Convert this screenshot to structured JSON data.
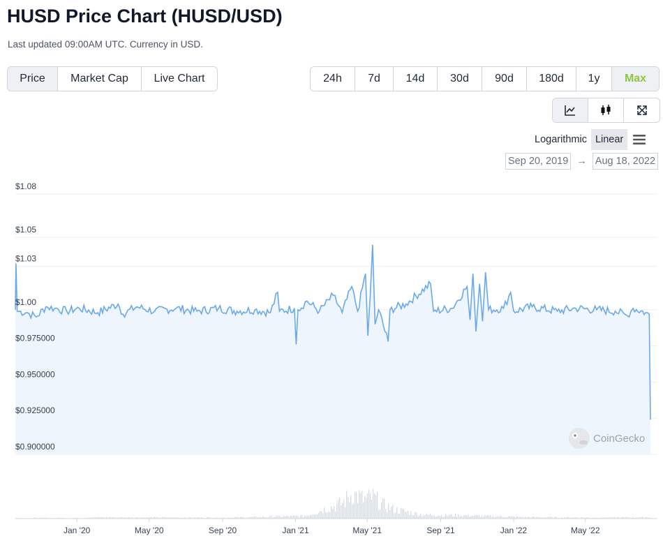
{
  "header": {
    "title": "HUSD Price Chart (HUSD/USD)",
    "subtitle": "Last updated 09:00AM UTC. Currency in USD."
  },
  "tabs": [
    {
      "label": "Price",
      "active": true
    },
    {
      "label": "Market Cap",
      "active": false
    },
    {
      "label": "Live Chart",
      "active": false
    }
  ],
  "ranges": [
    {
      "label": "24h",
      "active": false
    },
    {
      "label": "7d",
      "active": false
    },
    {
      "label": "14d",
      "active": false
    },
    {
      "label": "30d",
      "active": false
    },
    {
      "label": "90d",
      "active": false
    },
    {
      "label": "180d",
      "active": false
    },
    {
      "label": "1y",
      "active": false
    },
    {
      "label": "Max",
      "active": true
    }
  ],
  "tools": [
    {
      "icon": "line-chart-icon",
      "active": true
    },
    {
      "icon": "candlestick-icon",
      "active": false
    },
    {
      "icon": "fullscreen-icon",
      "active": false
    }
  ],
  "scale": {
    "logarithmic_label": "Logarithmic",
    "linear_label": "Linear",
    "active": "linear"
  },
  "date_range": {
    "from": "Sep 20, 2019",
    "arrow": "→",
    "to": "Aug 18, 2022"
  },
  "colors": {
    "line": "#6aa9e9",
    "area": "#eef5fd",
    "volume": "#d5dbe3",
    "accent": "#8dc63f"
  },
  "watermark": "CoinGecko",
  "chart_data": {
    "type": "line",
    "title": "HUSD Price Chart (HUSD/USD)",
    "x_range": [
      "2019-09-20",
      "2022-08-18"
    ],
    "ylim": [
      0.9,
      1.08
    ],
    "y_ticks": [
      {
        "value": 1.08,
        "label": "$1.08"
      },
      {
        "value": 1.05,
        "label": "$1.05"
      },
      {
        "value": 1.03,
        "label": "$1.03"
      },
      {
        "value": 1.0,
        "label": "$1.00"
      },
      {
        "value": 0.975,
        "label": "$0.975000"
      },
      {
        "value": 0.95,
        "label": "$0.950000"
      },
      {
        "value": 0.925,
        "label": "$0.925000"
      },
      {
        "value": 0.9,
        "label": "$0.900000"
      }
    ],
    "x_ticks": [
      {
        "date": "2020-01-01",
        "label": "Jan '20"
      },
      {
        "date": "2020-05-01",
        "label": "May '20"
      },
      {
        "date": "2020-09-01",
        "label": "Sep '20"
      },
      {
        "date": "2021-01-01",
        "label": "Jan '21"
      },
      {
        "date": "2021-05-01",
        "label": "May '21"
      },
      {
        "date": "2021-09-01",
        "label": "Sep '21"
      },
      {
        "date": "2022-01-01",
        "label": "Jan '22"
      },
      {
        "date": "2022-05-01",
        "label": "May '22"
      }
    ],
    "series": [
      {
        "values": [
          {
            "date": "2019-09-20",
            "price": 1.0
          },
          {
            "date": "2019-09-21",
            "price": 1.032
          },
          {
            "date": "2019-09-23",
            "price": 0.999
          },
          {
            "date": "2019-10-10",
            "price": 0.998
          },
          {
            "date": "2019-10-25",
            "price": 0.995
          },
          {
            "date": "2019-11-10",
            "price": 1.002
          },
          {
            "date": "2019-11-25",
            "price": 1.001
          },
          {
            "date": "2019-12-15",
            "price": 0.999
          },
          {
            "date": "2020-01-05",
            "price": 1.001
          },
          {
            "date": "2020-02-05",
            "price": 0.998
          },
          {
            "date": "2020-03-10",
            "price": 1.004
          },
          {
            "date": "2020-03-18",
            "price": 0.997
          },
          {
            "date": "2020-04-10",
            "price": 1.002
          },
          {
            "date": "2020-05-10",
            "price": 0.999
          },
          {
            "date": "2020-06-15",
            "price": 1.001
          },
          {
            "date": "2020-07-20",
            "price": 0.999
          },
          {
            "date": "2020-08-25",
            "price": 1.001
          },
          {
            "date": "2020-09-25",
            "price": 0.999
          },
          {
            "date": "2020-10-25",
            "price": 1.0
          },
          {
            "date": "2020-11-20",
            "price": 0.998
          },
          {
            "date": "2020-12-02",
            "price": 1.012
          },
          {
            "date": "2020-12-05",
            "price": 0.999
          },
          {
            "date": "2020-12-30",
            "price": 1.001
          },
          {
            "date": "2021-01-02",
            "price": 0.976
          },
          {
            "date": "2021-01-05",
            "price": 1.0
          },
          {
            "date": "2021-01-20",
            "price": 1.006
          },
          {
            "date": "2021-02-10",
            "price": 0.999
          },
          {
            "date": "2021-03-05",
            "price": 1.01
          },
          {
            "date": "2021-03-20",
            "price": 0.998
          },
          {
            "date": "2021-04-05",
            "price": 1.016
          },
          {
            "date": "2021-04-15",
            "price": 0.999
          },
          {
            "date": "2021-04-28",
            "price": 1.025
          },
          {
            "date": "2021-05-02",
            "price": 0.982
          },
          {
            "date": "2021-05-06",
            "price": 1.01
          },
          {
            "date": "2021-05-10",
            "price": 1.045
          },
          {
            "date": "2021-05-14",
            "price": 0.99
          },
          {
            "date": "2021-05-20",
            "price": 1.0
          },
          {
            "date": "2021-06-05",
            "price": 0.978
          },
          {
            "date": "2021-06-08",
            "price": 1.0
          },
          {
            "date": "2021-07-05",
            "price": 1.004
          },
          {
            "date": "2021-08-15",
            "price": 1.018
          },
          {
            "date": "2021-08-20",
            "price": 0.999
          },
          {
            "date": "2021-09-20",
            "price": 1.001
          },
          {
            "date": "2021-10-15",
            "price": 1.016
          },
          {
            "date": "2021-10-20",
            "price": 0.993
          },
          {
            "date": "2021-10-25",
            "price": 1.025
          },
          {
            "date": "2021-10-30",
            "price": 0.985
          },
          {
            "date": "2021-11-05",
            "price": 1.018
          },
          {
            "date": "2021-11-10",
            "price": 0.992
          },
          {
            "date": "2021-11-15",
            "price": 1.026
          },
          {
            "date": "2021-11-20",
            "price": 1.0
          },
          {
            "date": "2021-12-15",
            "price": 1.001
          },
          {
            "date": "2021-12-27",
            "price": 1.012
          },
          {
            "date": "2022-01-01",
            "price": 0.999
          },
          {
            "date": "2022-02-01",
            "price": 1.002
          },
          {
            "date": "2022-03-15",
            "price": 0.999
          },
          {
            "date": "2022-04-15",
            "price": 1.001
          },
          {
            "date": "2022-05-20",
            "price": 1.0
          },
          {
            "date": "2022-06-20",
            "price": 0.999
          },
          {
            "date": "2022-07-10",
            "price": 0.996
          },
          {
            "date": "2022-07-20",
            "price": 1.001
          },
          {
            "date": "2022-08-10",
            "price": 0.998
          },
          {
            "date": "2022-08-16",
            "price": 0.997
          },
          {
            "date": "2022-08-18",
            "price": 0.924
          }
        ]
      }
    ],
    "volume": [
      {
        "date": "2020-01-15",
        "level": 0.05
      },
      {
        "date": "2020-09-15",
        "level": 0.04
      },
      {
        "date": "2021-01-15",
        "level": 0.1
      },
      {
        "date": "2021-03-20",
        "level": 0.6
      },
      {
        "date": "2021-04-05",
        "level": 1.0
      },
      {
        "date": "2021-04-25",
        "level": 0.75
      },
      {
        "date": "2021-05-10",
        "level": 0.85
      },
      {
        "date": "2021-05-25",
        "level": 0.55
      },
      {
        "date": "2021-06-15",
        "level": 0.35
      },
      {
        "date": "2021-08-01",
        "level": 0.15
      },
      {
        "date": "2021-10-15",
        "level": 0.12
      },
      {
        "date": "2022-01-15",
        "level": 0.06
      },
      {
        "date": "2022-05-15",
        "level": 0.04
      },
      {
        "date": "2022-08-15",
        "level": 0.05
      }
    ],
    "grid": true,
    "legend": "none"
  }
}
